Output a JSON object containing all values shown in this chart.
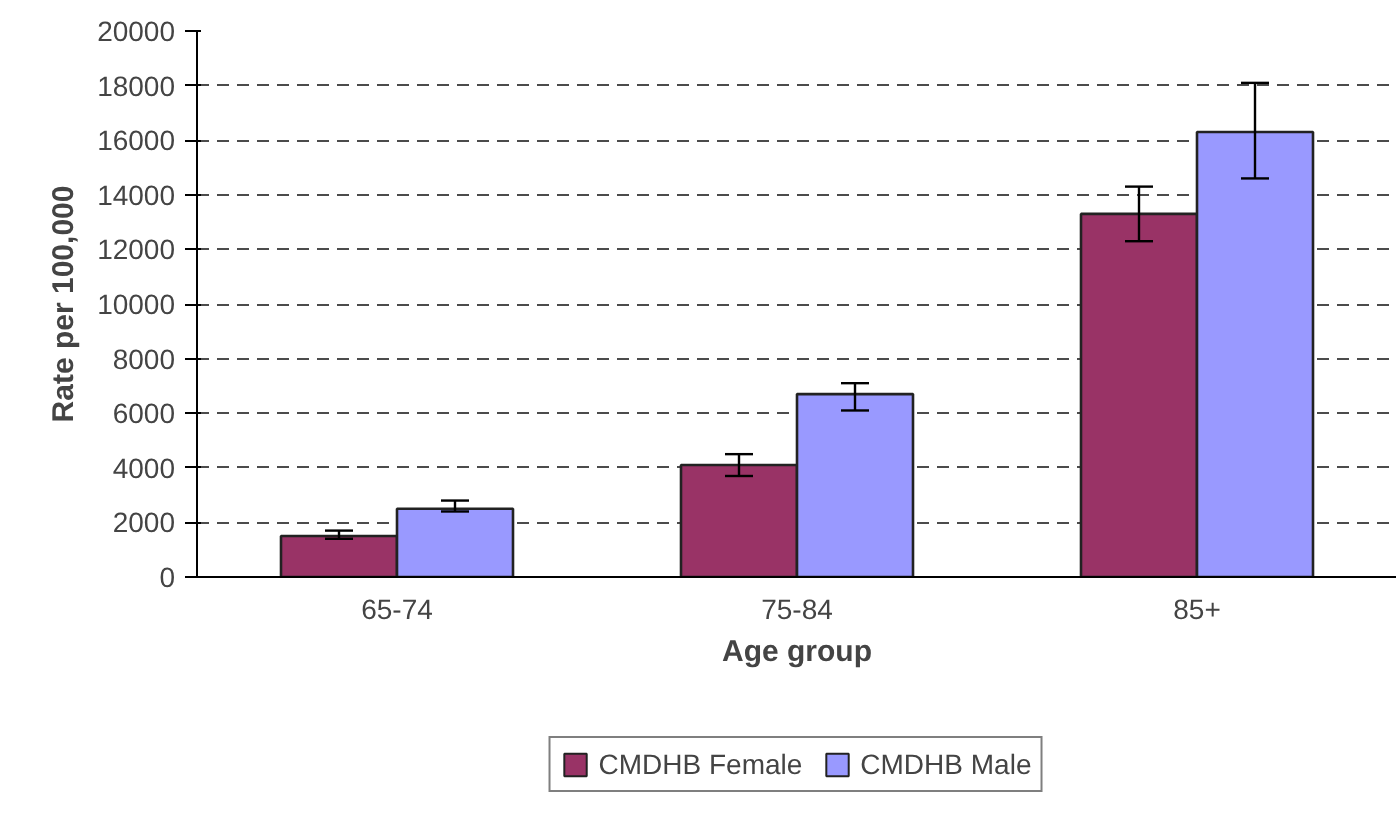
{
  "chart_data": {
    "type": "bar",
    "xlabel": "Age group",
    "ylabel": "Rate per 100,000",
    "categories": [
      "65-74",
      "75-84",
      "85+"
    ],
    "series": [
      {
        "name": "CMDHB Female",
        "color": "#993366",
        "values": [
          1500,
          4100,
          13300
        ],
        "errors": [
          [
            1400,
            1700
          ],
          [
            3700,
            4500
          ],
          [
            12300,
            14300
          ]
        ]
      },
      {
        "name": "CMDHB Male",
        "color": "#9999ff",
        "values": [
          2500,
          6700,
          16300
        ],
        "errors": [
          [
            2400,
            2800
          ],
          [
            6100,
            7100
          ],
          [
            14600,
            18100
          ]
        ]
      }
    ],
    "ylim": [
      0,
      20000
    ],
    "yticks": [
      0,
      2000,
      4000,
      6000,
      8000,
      10000,
      12000,
      14000,
      16000,
      18000,
      20000
    ],
    "grid": "y",
    "legend": "bottom"
  }
}
